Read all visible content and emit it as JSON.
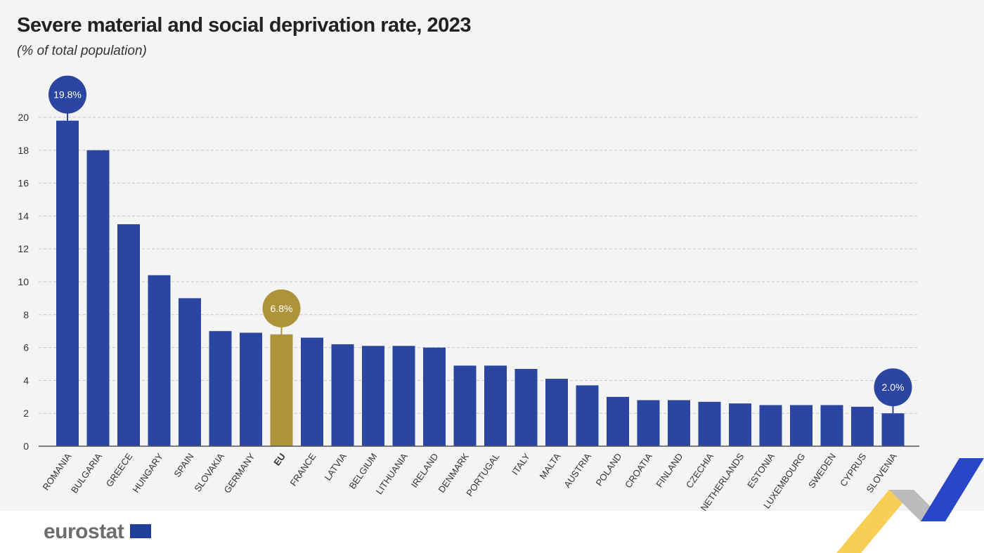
{
  "chart_data": {
    "type": "bar",
    "title": "Severe material and social deprivation rate, 2023",
    "subtitle": "(% of total population)",
    "categories": [
      "ROMANIA",
      "BULGARIA",
      "GREECE",
      "HUNGARY",
      "SPAIN",
      "SLOVAKIA",
      "GERMANY",
      "EU",
      "FRANCE",
      "LATVIA",
      "BELGIUM",
      "LITHUANIA",
      "IRELAND",
      "DENMARK",
      "PORTUGAL",
      "ITALY",
      "MALTA",
      "AUSTRIA",
      "POLAND",
      "CROATIA",
      "FINLAND",
      "CZECHIA",
      "NETHERLANDS",
      "ESTONIA",
      "LUXEMBOURG",
      "SWEDEN",
      "CYPRUS",
      "SLOVENIA"
    ],
    "values": [
      19.8,
      18.0,
      13.5,
      10.4,
      9.0,
      7.0,
      6.9,
      6.8,
      6.6,
      6.2,
      6.1,
      6.1,
      6.0,
      4.9,
      4.9,
      4.7,
      4.1,
      3.7,
      3.0,
      2.8,
      2.8,
      2.7,
      2.6,
      2.5,
      2.5,
      2.5,
      2.4,
      2.0
    ],
    "ylim": [
      0,
      20
    ],
    "yticks": [
      0,
      2,
      4,
      6,
      8,
      10,
      12,
      14,
      16,
      18,
      20
    ],
    "grid": true,
    "highlight_category": "EU",
    "callouts": [
      {
        "category": "ROMANIA",
        "label": "19.8%"
      },
      {
        "category": "EU",
        "label": "6.8%"
      },
      {
        "category": "SLOVENIA",
        "label": "2.0%"
      }
    ],
    "colors": {
      "bar": "#2a46a1",
      "eu_bar": "#ad943a",
      "grid": "#c8c8c8"
    }
  },
  "footer": {
    "logo": "eurostat"
  }
}
